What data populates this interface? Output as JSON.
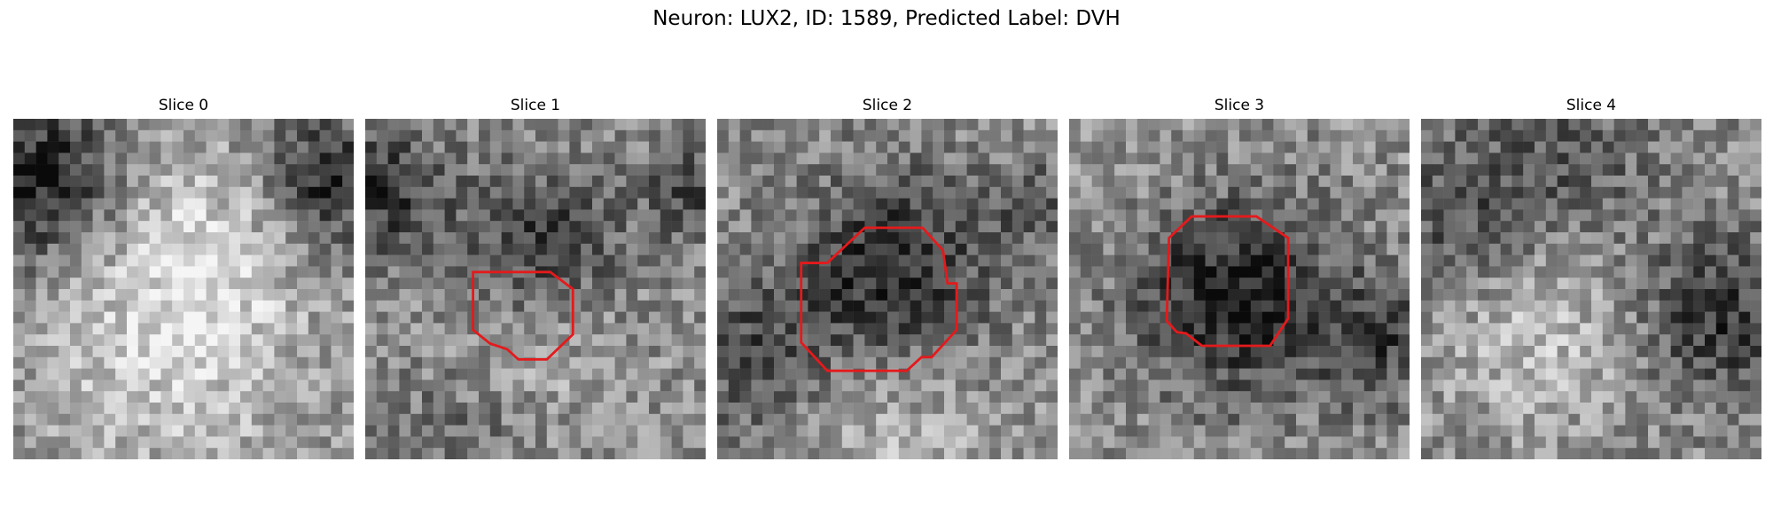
{
  "figure": {
    "title": "Neuron: LUX2, ID: 1589, Predicted Label: DVH"
  },
  "panels": [
    {
      "title": "Slice 0",
      "has_contour": false,
      "seed": 11
    },
    {
      "title": "Slice 1",
      "has_contour": true,
      "seed": 23
    },
    {
      "title": "Slice 2",
      "has_contour": true,
      "seed": 37
    },
    {
      "title": "Slice 3",
      "has_contour": true,
      "seed": 51
    },
    {
      "title": "Slice 4",
      "has_contour": false,
      "seed": 67
    }
  ],
  "colors": {
    "contour": "#e41a1c",
    "background": "#ffffff"
  }
}
